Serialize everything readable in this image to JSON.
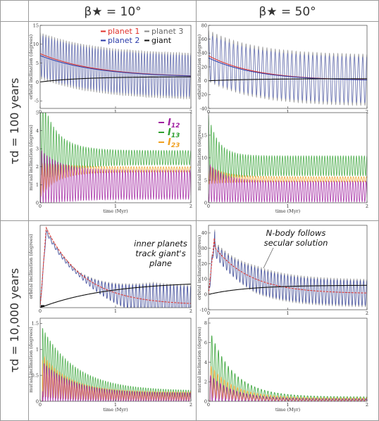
{
  "header": {
    "beta_10": "β★ = 10°",
    "beta_50": "β★ = 50°"
  },
  "rows": {
    "tau_100": "τd = 100 years",
    "tau_10000": "τd = 10,000 years"
  },
  "labels": {
    "xlabel": "time (Myr)",
    "ylabel_orbital": "orbital inclination (degrees)",
    "ylabel_mutual": "mutual inclination (degrees)"
  },
  "legend_planets": [
    {
      "name": "planet 1",
      "color": "#e0302a"
    },
    {
      "name": "planet 2",
      "color": "#2a3aa8"
    },
    {
      "name": "planet 3",
      "color": "#888888"
    },
    {
      "name": "giant",
      "color": "#111111"
    }
  ],
  "legend_mutual": [
    {
      "name": "I12",
      "base": "I",
      "sub": "12",
      "color": "#a020a0"
    },
    {
      "name": "I13",
      "base": "I",
      "sub": "13",
      "color": "#2fa02f"
    },
    {
      "name": "I23",
      "base": "I",
      "sub": "23",
      "color": "#f0a020"
    }
  ],
  "annotations": {
    "track_1": "inner planets",
    "track_2": "track giant's",
    "track_3": "plane",
    "nbody_1": "N-body follows",
    "nbody_2": "secular solution"
  },
  "chart_data": [
    {
      "type": "line",
      "panel": "tau100-beta10-orbital",
      "xlim": [
        0,
        2
      ],
      "ylim": [
        -7,
        15
      ],
      "yticks": [
        -5,
        0,
        5,
        10,
        15
      ],
      "xticks": [
        0,
        1,
        2
      ],
      "series": [
        {
          "name": "planet 1"
        },
        {
          "name": "planet 2"
        },
        {
          "name": "planet 3"
        },
        {
          "name": "giant"
        }
      ]
    },
    {
      "type": "line",
      "panel": "tau100-beta10-mutual",
      "xlim": [
        0,
        2
      ],
      "ylim": [
        0,
        5
      ],
      "yticks": [
        0,
        1,
        2,
        3,
        4,
        5
      ],
      "xticks": [
        0,
        1,
        2
      ],
      "series": [
        {
          "name": "I12"
        },
        {
          "name": "I13"
        },
        {
          "name": "I23"
        }
      ]
    },
    {
      "type": "line",
      "panel": "tau100-beta50-orbital",
      "xlim": [
        0,
        2
      ],
      "ylim": [
        -40,
        80
      ],
      "yticks": [
        -40,
        -20,
        0,
        20,
        40,
        60,
        80
      ],
      "xticks": [
        0,
        1,
        2
      ],
      "series": [
        {
          "name": "planet 1"
        },
        {
          "name": "planet 2"
        },
        {
          "name": "planet 3"
        },
        {
          "name": "giant"
        }
      ]
    },
    {
      "type": "line",
      "panel": "tau100-beta50-mutual",
      "xlim": [
        0,
        2
      ],
      "ylim": [
        0,
        20
      ],
      "yticks": [
        0,
        5,
        10,
        15
      ],
      "xticks": [
        0,
        1,
        2
      ],
      "series": [
        {
          "name": "I12"
        },
        {
          "name": "I13"
        },
        {
          "name": "I23"
        }
      ]
    },
    {
      "type": "line",
      "panel": "tau10000-beta10-orbital",
      "xlim": [
        0,
        2
      ],
      "ylim": [
        0,
        16.5
      ],
      "yticks": [],
      "xticks": [
        0,
        1,
        2
      ],
      "series": [
        {
          "name": "planet 1"
        },
        {
          "name": "planet 2"
        },
        {
          "name": "planet 3"
        },
        {
          "name": "giant"
        }
      ]
    },
    {
      "type": "line",
      "panel": "tau10000-beta10-mutual",
      "xlim": [
        0,
        2
      ],
      "ylim": [
        0,
        1.6
      ],
      "yticks": [
        0,
        0.5,
        1,
        1.5
      ],
      "xticks": [
        0,
        1,
        2
      ],
      "series": [
        {
          "name": "I12"
        },
        {
          "name": "I13"
        },
        {
          "name": "I23"
        }
      ]
    },
    {
      "type": "line",
      "panel": "tau10000-beta50-orbital",
      "xlim": [
        0,
        2
      ],
      "ylim": [
        -10,
        45
      ],
      "yticks": [
        -10,
        0,
        10,
        20,
        30,
        40
      ],
      "xticks": [
        0,
        1,
        2
      ],
      "series": [
        {
          "name": "planet 1"
        },
        {
          "name": "planet 2"
        },
        {
          "name": "planet 3"
        },
        {
          "name": "giant"
        }
      ]
    },
    {
      "type": "line",
      "panel": "tau10000-beta50-mutual",
      "xlim": [
        0,
        2
      ],
      "ylim": [
        0,
        8.5
      ],
      "yticks": [
        0,
        2,
        4,
        6,
        8
      ],
      "xticks": [
        0,
        1,
        2
      ],
      "series": [
        {
          "name": "I12"
        },
        {
          "name": "I13"
        },
        {
          "name": "I23"
        }
      ]
    }
  ]
}
